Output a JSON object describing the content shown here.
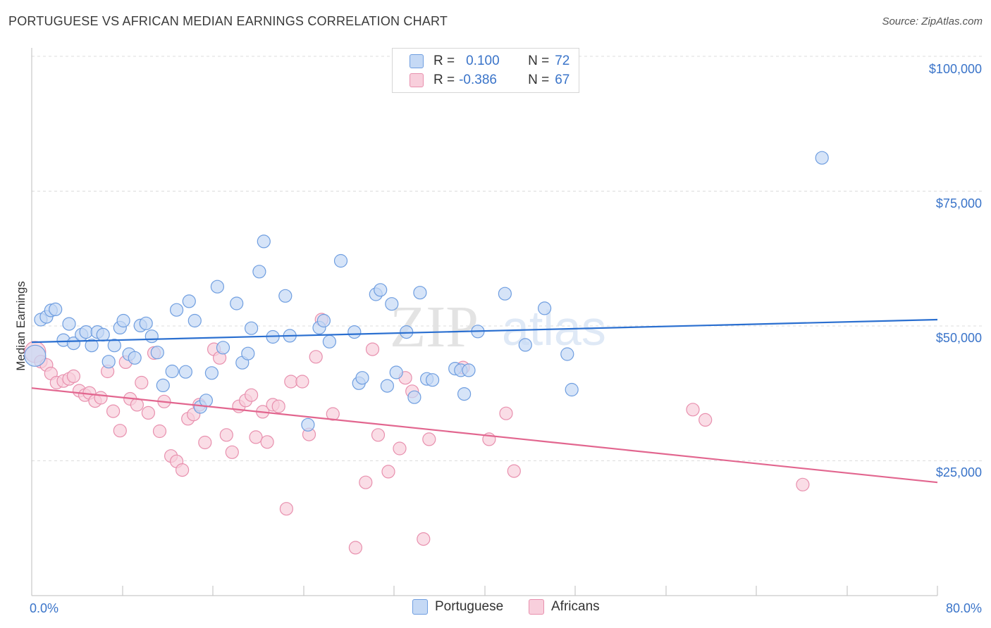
{
  "header": {
    "title": "PORTUGUESE VS AFRICAN MEDIAN EARNINGS CORRELATION CHART",
    "source": "Source: ZipAtlas.com"
  },
  "watermark": {
    "zip": "ZIP",
    "atlas": "atlas"
  },
  "legend": {
    "rows": [
      {
        "r_label": "R =",
        "r_value": "0.100",
        "n_label": "N =",
        "n_value": "72"
      },
      {
        "r_label": "R =",
        "r_value": "-0.386",
        "n_label": "N =",
        "n_value": "67"
      }
    ]
  },
  "colors": {
    "portuguese_fill": "#c5d9f5",
    "portuguese_stroke": "#6f9ee0",
    "portuguese_line": "#2a6fd0",
    "africans_fill": "#f8cfdc",
    "africans_stroke": "#e890ae",
    "africans_line": "#e2668f",
    "tick_text": "#3a74c9",
    "grid": "#dcdcdc"
  },
  "chart_data": {
    "type": "scatter",
    "title": "PORTUGUESE VS AFRICAN MEDIAN EARNINGS CORRELATION CHART",
    "xlabel": "",
    "ylabel": "Median Earnings",
    "xlim": [
      0,
      80
    ],
    "ylim": [
      0,
      105000
    ],
    "x_tick_labels": [
      "0.0%",
      "80.0%"
    ],
    "y_ticks": [
      25000,
      50000,
      75000,
      100000
    ],
    "y_tick_labels": [
      "$25,000",
      "$50,000",
      "$75,000",
      "$100,000"
    ],
    "grid": true,
    "legend_position": "bottom",
    "series": [
      {
        "name": "Portuguese",
        "r": 0.1,
        "n": 72,
        "trend": {
          "x": [
            0,
            80
          ],
          "y": [
            47000,
            51200
          ]
        },
        "points": [
          [
            0.3,
            44500
          ],
          [
            0.8,
            51200
          ],
          [
            1.3,
            51700
          ],
          [
            1.7,
            52900
          ],
          [
            2.1,
            53100
          ],
          [
            2.8,
            47400
          ],
          [
            3.3,
            50400
          ],
          [
            3.7,
            46800
          ],
          [
            4.4,
            48400
          ],
          [
            4.8,
            48900
          ],
          [
            5.3,
            46400
          ],
          [
            5.8,
            48900
          ],
          [
            6.3,
            48400
          ],
          [
            6.8,
            43400
          ],
          [
            7.3,
            46400
          ],
          [
            7.8,
            49700
          ],
          [
            8.1,
            51000
          ],
          [
            8.6,
            44800
          ],
          [
            9.1,
            44100
          ],
          [
            9.6,
            50100
          ],
          [
            10.1,
            50500
          ],
          [
            10.6,
            48100
          ],
          [
            11.1,
            45100
          ],
          [
            11.6,
            39000
          ],
          [
            12.4,
            41600
          ],
          [
            12.8,
            53000
          ],
          [
            13.6,
            41500
          ],
          [
            13.9,
            54600
          ],
          [
            14.4,
            51000
          ],
          [
            14.9,
            35000
          ],
          [
            15.4,
            36200
          ],
          [
            15.9,
            41300
          ],
          [
            16.4,
            57300
          ],
          [
            16.9,
            46000
          ],
          [
            18.1,
            54200
          ],
          [
            18.6,
            43200
          ],
          [
            19.1,
            44900
          ],
          [
            19.4,
            49600
          ],
          [
            20.1,
            60100
          ],
          [
            20.5,
            65700
          ],
          [
            21.3,
            48000
          ],
          [
            22.4,
            55600
          ],
          [
            22.8,
            48200
          ],
          [
            24.4,
            31700
          ],
          [
            25.4,
            49700
          ],
          [
            25.8,
            51000
          ],
          [
            26.3,
            47100
          ],
          [
            27.3,
            62100
          ],
          [
            28.5,
            48900
          ],
          [
            28.9,
            39400
          ],
          [
            29.2,
            40400
          ],
          [
            30.4,
            55900
          ],
          [
            30.8,
            56700
          ],
          [
            31.4,
            38900
          ],
          [
            31.8,
            54100
          ],
          [
            32.2,
            41400
          ],
          [
            33.1,
            48900
          ],
          [
            33.8,
            36800
          ],
          [
            34.3,
            56200
          ],
          [
            34.9,
            40200
          ],
          [
            35.4,
            40000
          ],
          [
            37.4,
            42100
          ],
          [
            37.9,
            41800
          ],
          [
            38.2,
            37400
          ],
          [
            38.6,
            41800
          ],
          [
            39.4,
            49000
          ],
          [
            41.8,
            56000
          ],
          [
            43.6,
            46500
          ],
          [
            45.3,
            53300
          ],
          [
            47.3,
            44800
          ],
          [
            47.7,
            38200
          ],
          [
            69.8,
            81200
          ]
        ]
      },
      {
        "name": "Africans",
        "r": -0.386,
        "n": 67,
        "trend": {
          "x": [
            0,
            80
          ],
          "y": [
            38500,
            21000
          ]
        },
        "points": [
          [
            0.3,
            45200
          ],
          [
            0.8,
            43400
          ],
          [
            1.3,
            42800
          ],
          [
            1.7,
            41200
          ],
          [
            2.2,
            39500
          ],
          [
            2.8,
            39800
          ],
          [
            3.3,
            40200
          ],
          [
            3.7,
            40700
          ],
          [
            4.2,
            38000
          ],
          [
            4.7,
            37200
          ],
          [
            5.1,
            37600
          ],
          [
            5.6,
            36100
          ],
          [
            6.1,
            36700
          ],
          [
            6.7,
            41600
          ],
          [
            7.2,
            34200
          ],
          [
            7.8,
            30600
          ],
          [
            8.3,
            43300
          ],
          [
            8.7,
            36500
          ],
          [
            9.3,
            35400
          ],
          [
            9.7,
            39500
          ],
          [
            10.3,
            33900
          ],
          [
            10.8,
            45000
          ],
          [
            11.3,
            30500
          ],
          [
            11.7,
            36000
          ],
          [
            12.3,
            25900
          ],
          [
            12.8,
            24900
          ],
          [
            13.3,
            23300
          ],
          [
            13.8,
            32800
          ],
          [
            14.3,
            33600
          ],
          [
            14.8,
            35400
          ],
          [
            15.3,
            28400
          ],
          [
            16.1,
            45700
          ],
          [
            16.6,
            44100
          ],
          [
            17.2,
            29800
          ],
          [
            17.7,
            26600
          ],
          [
            18.3,
            35100
          ],
          [
            18.9,
            36200
          ],
          [
            19.4,
            37200
          ],
          [
            19.8,
            29400
          ],
          [
            20.4,
            34100
          ],
          [
            20.8,
            28500
          ],
          [
            21.3,
            35400
          ],
          [
            21.8,
            35100
          ],
          [
            22.5,
            16100
          ],
          [
            22.9,
            39700
          ],
          [
            23.9,
            39700
          ],
          [
            24.5,
            29900
          ],
          [
            25.1,
            44300
          ],
          [
            25.6,
            51200
          ],
          [
            26.6,
            33700
          ],
          [
            28.6,
            8900
          ],
          [
            29.5,
            21000
          ],
          [
            30.1,
            45700
          ],
          [
            30.6,
            29800
          ],
          [
            31.5,
            23000
          ],
          [
            32.5,
            27300
          ],
          [
            33.0,
            40400
          ],
          [
            33.6,
            37900
          ],
          [
            34.6,
            10500
          ],
          [
            35.1,
            29000
          ],
          [
            38.1,
            42300
          ],
          [
            40.4,
            29000
          ],
          [
            41.9,
            33800
          ],
          [
            42.6,
            23100
          ],
          [
            58.4,
            34500
          ],
          [
            59.5,
            32600
          ],
          [
            68.1,
            20600
          ]
        ]
      }
    ]
  }
}
